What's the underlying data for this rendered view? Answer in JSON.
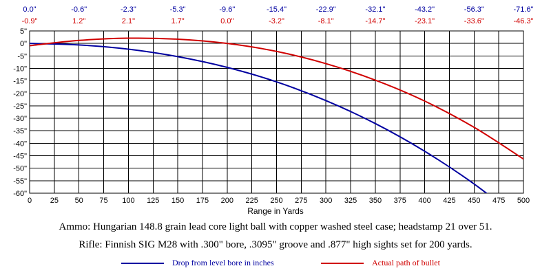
{
  "chart_data": {
    "type": "line",
    "xlabel": "Range in Yards",
    "xlim": [
      0,
      500
    ],
    "ylim": [
      -60,
      5
    ],
    "x_ticks": [
      0,
      25,
      50,
      75,
      100,
      125,
      150,
      175,
      200,
      225,
      250,
      275,
      300,
      325,
      350,
      375,
      400,
      425,
      450,
      475,
      500
    ],
    "y_ticks": [
      5,
      0,
      -5,
      -10,
      -15,
      -20,
      -25,
      -30,
      -35,
      -40,
      -45,
      -50,
      -55,
      -60
    ],
    "y_tick_labels": [
      "5\"",
      "0\"",
      "-5\"",
      "-10\"",
      "-15\"",
      "-20\"",
      "-25\"",
      "-30\"",
      "-35\"",
      "-40\"",
      "-45\"",
      "-50\"",
      "-55\"",
      "-60\""
    ],
    "grid": true,
    "top_row_drop": [
      "0.0\"",
      "-0.6\"",
      "-2.3\"",
      "-5.3\"",
      "-9.6\"",
      "-15.4\"",
      "-22.9\"",
      "-32.1\"",
      "-43.2\"",
      "-56.3\"",
      "-71.6\""
    ],
    "top_row_path": [
      "-0.9\"",
      "1.2\"",
      "2.1\"",
      "1.7\"",
      "0.0\"",
      "-3.2\"",
      "-8.1\"",
      "-14.7\"",
      "-23.1\"",
      "-33.6\"",
      "-46.3\""
    ],
    "series": [
      {
        "name": "Drop from level bore in inches",
        "color": "#0000a0",
        "x": [
          0,
          50,
          100,
          150,
          200,
          250,
          300,
          350,
          400,
          450,
          500
        ],
        "y": [
          0.0,
          -0.6,
          -2.3,
          -5.3,
          -9.6,
          -15.4,
          -22.9,
          -32.1,
          -43.2,
          -56.3,
          -71.6
        ]
      },
      {
        "name": "Actual path of bullet",
        "color": "#d00000",
        "x": [
          0,
          50,
          100,
          150,
          200,
          250,
          300,
          350,
          400,
          450,
          500
        ],
        "y": [
          -0.9,
          1.2,
          2.1,
          1.7,
          0.0,
          -3.2,
          -8.1,
          -14.7,
          -23.1,
          -33.6,
          -46.3
        ]
      }
    ]
  },
  "captions": {
    "ammo": "Ammo:  Hungarian 148.8 grain lead core light ball with copper washed steel case; headstamp 21 over 51.",
    "rifle": "Rifle:  Finnish SIG M28 with .300\" bore, .3095\" groove and .877\" high sights set for 200 yards."
  }
}
